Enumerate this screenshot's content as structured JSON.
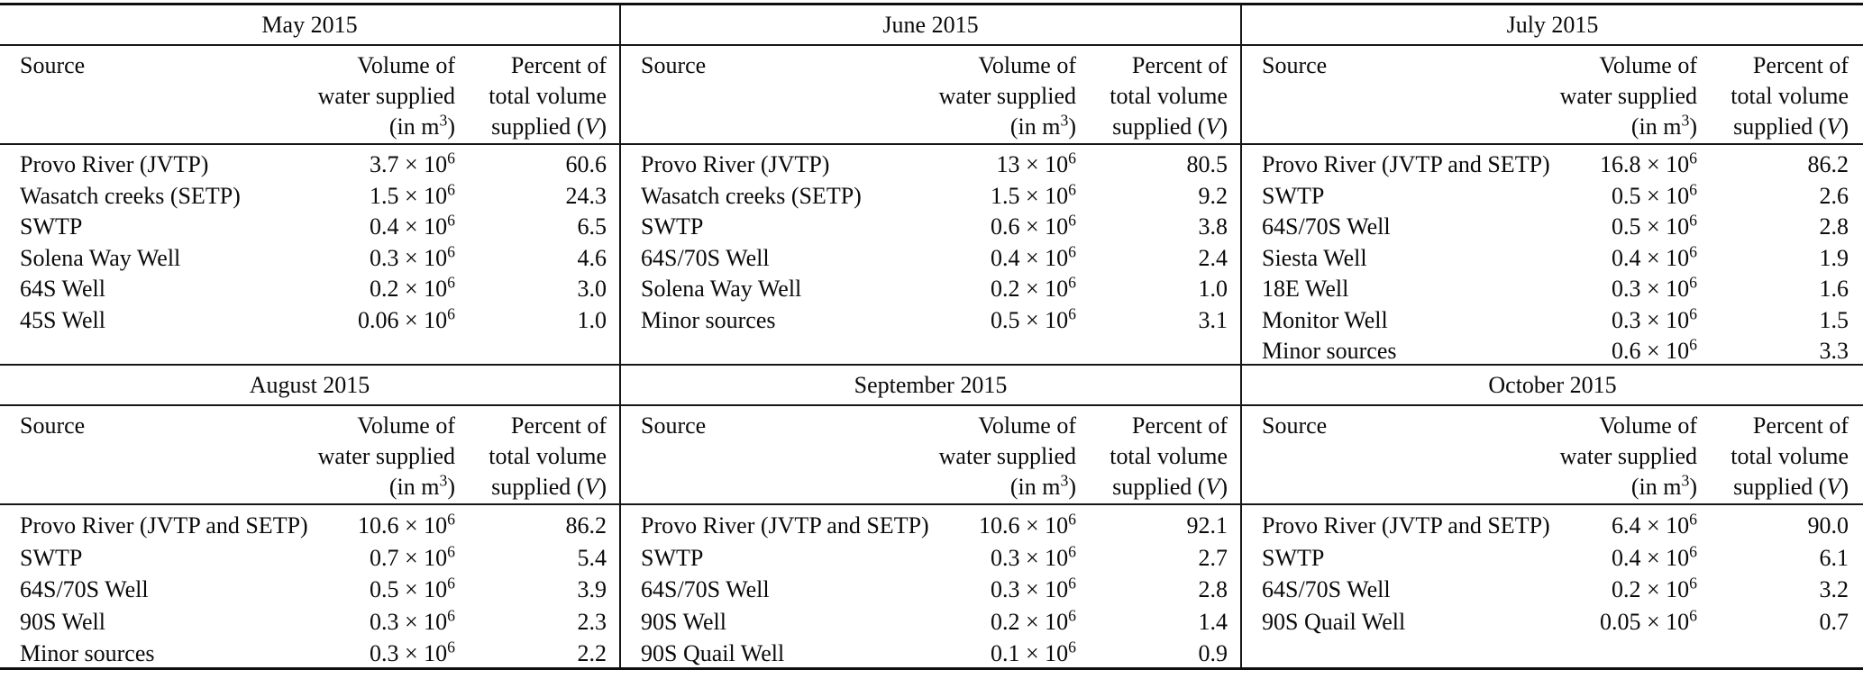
{
  "table": {
    "column_headers": {
      "source": "Source",
      "volume_lines": [
        "Volume of",
        "water supplied",
        "(in m^{3})"
      ],
      "percent_lines": [
        "Percent of",
        "total volume",
        "supplied (*V*)"
      ]
    },
    "months": [
      {
        "title": "May 2015",
        "rows": [
          {
            "source": "Provo River (JVTP)",
            "volume": "3.7 × 10^{6}",
            "percent": "60.6"
          },
          {
            "source": "Wasatch creeks (SETP)",
            "volume": "1.5 × 10^{6}",
            "percent": "24.3"
          },
          {
            "source": "SWTP",
            "volume": "0.4 × 10^{6}",
            "percent": "6.5"
          },
          {
            "source": "Solena Way Well",
            "volume": "0.3 × 10^{6}",
            "percent": "4.6"
          },
          {
            "source": "64S Well",
            "volume": "0.2 × 10^{6}",
            "percent": "3.0"
          },
          {
            "source": "45S Well",
            "volume": "0.06 × 10^{6}",
            "percent": "1.0"
          }
        ]
      },
      {
        "title": "June 2015",
        "rows": [
          {
            "source": "Provo River (JVTP)",
            "volume": "13 × 10^{6}",
            "percent": "80.5"
          },
          {
            "source": "Wasatch creeks (SETP)",
            "volume": "1.5 × 10^{6}",
            "percent": "9.2"
          },
          {
            "source": "SWTP",
            "volume": "0.6 × 10^{6}",
            "percent": "3.8"
          },
          {
            "source": "64S/70S Well",
            "volume": "0.4 × 10^{6}",
            "percent": "2.4"
          },
          {
            "source": "Solena Way Well",
            "volume": "0.2 × 10^{6}",
            "percent": "1.0"
          },
          {
            "source": "Minor sources",
            "volume": "0.5 × 10^{6}",
            "percent": "3.1"
          }
        ]
      },
      {
        "title": "July 2015",
        "rows": [
          {
            "source": "Provo River (JVTP and SETP)",
            "volume": "16.8 × 10^{6}",
            "percent": "86.2"
          },
          {
            "source": "SWTP",
            "volume": "0.5 × 10^{6}",
            "percent": "2.6"
          },
          {
            "source": "64S/70S Well",
            "volume": "0.5 × 10^{6}",
            "percent": "2.8"
          },
          {
            "source": "Siesta Well",
            "volume": "0.4 × 10^{6}",
            "percent": "1.9"
          },
          {
            "source": "18E Well",
            "volume": "0.3 × 10^{6}",
            "percent": "1.6"
          },
          {
            "source": "Monitor Well",
            "volume": "0.3 × 10^{6}",
            "percent": "1.5"
          },
          {
            "source": "Minor sources",
            "volume": "0.6 × 10^{6}",
            "percent": "3.3"
          }
        ]
      },
      {
        "title": "August 2015",
        "rows": [
          {
            "source": "Provo River (JVTP and SETP)",
            "volume": "10.6 × 10^{6}",
            "percent": "86.2"
          },
          {
            "source": "SWTP",
            "volume": "0.7 × 10^{6}",
            "percent": "5.4"
          },
          {
            "source": "64S/70S Well",
            "volume": "0.5 × 10^{6}",
            "percent": "3.9"
          },
          {
            "source": "90S Well",
            "volume": "0.3 × 10^{6}",
            "percent": "2.3"
          },
          {
            "source": "Minor sources",
            "volume": "0.3 × 10^{6}",
            "percent": "2.2"
          }
        ]
      },
      {
        "title": "September 2015",
        "rows": [
          {
            "source": "Provo River (JVTP and SETP)",
            "volume": "10.6 × 10^{6}",
            "percent": "92.1"
          },
          {
            "source": "SWTP",
            "volume": "0.3 × 10^{6}",
            "percent": "2.7"
          },
          {
            "source": "64S/70S Well",
            "volume": "0.3 × 10^{6}",
            "percent": "2.8"
          },
          {
            "source": "90S Well",
            "volume": "0.2 × 10^{6}",
            "percent": "1.4"
          },
          {
            "source": "90S Quail Well",
            "volume": "0.1 × 10^{6}",
            "percent": "0.9"
          }
        ]
      },
      {
        "title": "October 2015",
        "rows": [
          {
            "source": "Provo River (JVTP and SETP)",
            "volume": "6.4 × 10^{6}",
            "percent": "90.0"
          },
          {
            "source": "SWTP",
            "volume": "0.4 × 10^{6}",
            "percent": "6.1"
          },
          {
            "source": "64S/70S Well",
            "volume": "0.2 × 10^{6}",
            "percent": "3.2"
          },
          {
            "source": "90S Quail Well",
            "volume": "0.05 × 10^{6}",
            "percent": "0.7"
          }
        ]
      }
    ]
  }
}
